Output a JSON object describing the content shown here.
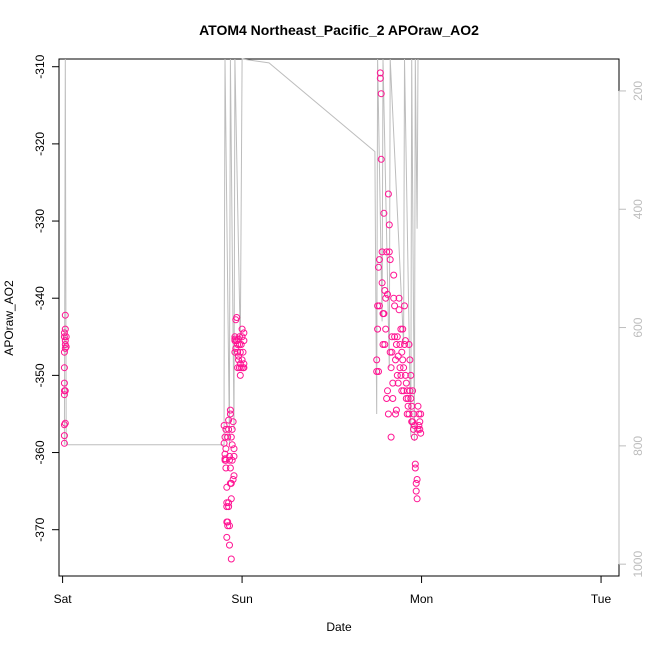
{
  "chart_data": {
    "type": "scatter",
    "title": "ATOM4 Northeast_Pacific_2 APOraw_AO2",
    "xlabel": "Date",
    "ylabel": "APOraw_AO2",
    "x_unit": "days since Saturday 00:00",
    "xlim": [
      -0.02,
      3.1
    ],
    "ylim": [
      -376,
      -309
    ],
    "x_ticks": [
      {
        "value": 0,
        "label": "Sat"
      },
      {
        "value": 1,
        "label": "Sun"
      },
      {
        "value": 2,
        "label": "Mon"
      },
      {
        "value": 3,
        "label": "Tue"
      }
    ],
    "y_ticks": [
      -370,
      -360,
      -350,
      -340,
      -330,
      -320,
      -310
    ],
    "right_axis": {
      "color": "#bdbdbd",
      "reversed": true,
      "lim": [
        146,
        1020
      ],
      "ticks": [
        200,
        400,
        600,
        800,
        1000
      ]
    },
    "grid": false,
    "series": [
      {
        "name": "APOraw_AO2",
        "color": "#ff1493",
        "marker": "open-circle",
        "x": [
          0.01,
          0.01,
          0.01,
          0.01,
          0.01,
          0.01,
          0.01,
          0.01,
          0.01,
          0.01,
          0.015,
          0.015,
          0.015,
          0.015,
          0.015,
          0.015,
          0.015,
          0.02,
          0.02,
          0.9,
          0.9,
          0.905,
          0.905,
          0.905,
          0.905,
          0.91,
          0.91,
          0.91,
          0.91,
          0.915,
          0.915,
          0.915,
          0.915,
          0.915,
          0.92,
          0.92,
          0.92,
          0.925,
          0.925,
          0.925,
          0.925,
          0.93,
          0.93,
          0.93,
          0.93,
          0.935,
          0.935,
          0.935,
          0.935,
          0.94,
          0.94,
          0.94,
          0.94,
          0.945,
          0.945,
          0.945,
          0.95,
          0.95,
          0.955,
          0.955,
          0.955,
          0.96,
          0.96,
          0.96,
          0.96,
          0.965,
          0.965,
          0.97,
          0.97,
          0.975,
          0.975,
          0.975,
          0.98,
          0.98,
          0.98,
          0.985,
          0.985,
          0.985,
          0.99,
          0.99,
          0.99,
          0.995,
          0.995,
          1.0,
          1.0,
          1.0,
          1.005,
          1.005,
          1.01,
          1.01,
          1.01,
          1.01,
          1.75,
          1.75,
          1.755,
          1.755,
          1.76,
          1.76,
          1.765,
          1.765,
          1.77,
          1.77,
          1.775,
          1.775,
          1.78,
          1.78,
          1.785,
          1.785,
          1.79,
          1.79,
          1.795,
          1.795,
          1.8,
          1.8,
          1.805,
          1.805,
          1.81,
          1.81,
          1.815,
          1.815,
          1.82,
          1.82,
          1.825,
          1.825,
          1.83,
          1.83,
          1.835,
          1.835,
          1.84,
          1.84,
          1.845,
          1.845,
          1.85,
          1.85,
          1.855,
          1.855,
          1.86,
          1.86,
          1.865,
          1.865,
          1.87,
          1.87,
          1.875,
          1.875,
          1.88,
          1.88,
          1.885,
          1.885,
          1.89,
          1.89,
          1.895,
          1.895,
          1.9,
          1.9,
          1.905,
          1.905,
          1.91,
          1.91,
          1.915,
          1.915,
          1.92,
          1.92,
          1.925,
          1.925,
          1.93,
          1.93,
          1.935,
          1.935,
          1.94,
          1.94,
          1.945,
          1.945,
          1.95,
          1.95,
          1.955,
          1.955,
          1.96,
          1.96,
          1.965,
          1.965,
          1.97,
          1.97,
          1.975,
          1.975,
          1.98,
          1.98,
          1.985,
          1.985,
          1.99,
          1.99,
          1.995,
          1.995
        ],
        "y": [
          -358.8,
          -357.8,
          -356.4,
          -351.0,
          -347.0,
          -345.0,
          -344.5,
          -352.5,
          -352.0,
          -349.0,
          -356.2,
          -346.5,
          -346.0,
          -344.0,
          -342.2,
          -345.5,
          -352.0,
          -346.3,
          -345.0,
          -356.5,
          -358.8,
          -360.2,
          -361.0,
          -360.8,
          -358.0,
          -362.0,
          -361.0,
          -359.5,
          -357.0,
          -366.5,
          -367.0,
          -369.0,
          -371.0,
          -364.5,
          -369.5,
          -369.0,
          -358.0,
          -366.5,
          -367.0,
          -357.0,
          -355.8,
          -361.0,
          -360.5,
          -369.5,
          -372.0,
          -355.0,
          -354.5,
          -362.0,
          -364.0,
          -364.0,
          -366.0,
          -373.8,
          -358.0,
          -357.0,
          -359.0,
          -361.0,
          -356.0,
          -363.5,
          -359.5,
          -360.5,
          -363.0,
          -347.0,
          -345.5,
          -345.3,
          -345.0,
          -346.5,
          -342.8,
          -342.5,
          -345.5,
          -346.0,
          -347.0,
          -349.0,
          -345.3,
          -347.5,
          -348.0,
          -345.0,
          -346.0,
          -349.0,
          -347.0,
          -348.5,
          -350.0,
          -346.0,
          -349.0,
          -345.0,
          -348.0,
          -344.0,
          -349.0,
          -347.0,
          -345.5,
          -344.5,
          -348.5,
          -349.0,
          -348.0,
          -349.5,
          -341.0,
          -344.0,
          -336.0,
          -349.5,
          -335.0,
          -341.0,
          -311.5,
          -310.8,
          -313.5,
          -322.0,
          -334.0,
          -338.0,
          -342.0,
          -346.0,
          -329.0,
          -342.0,
          -339.0,
          -346.0,
          -344.0,
          -340.0,
          -353.0,
          -334.0,
          -339.5,
          -352.0,
          -355.0,
          -326.5,
          -330.5,
          -334.0,
          -347.0,
          -335.0,
          -349.0,
          -358.0,
          -345.0,
          -347.0,
          -351.0,
          -353.0,
          -337.0,
          -340.0,
          -345.0,
          -341.0,
          -348.0,
          -355.0,
          -354.5,
          -346.0,
          -350.0,
          -345.0,
          -347.5,
          -351.0,
          -340.0,
          -341.5,
          -346.0,
          -349.0,
          -344.0,
          -350.0,
          -347.0,
          -352.0,
          -344.0,
          -348.0,
          -349.0,
          -352.0,
          -341.0,
          -346.0,
          -345.5,
          -350.0,
          -353.0,
          -351.0,
          -355.0,
          -352.0,
          -353.0,
          -354.0,
          -355.0,
          -346.0,
          -352.0,
          -348.0,
          -353.0,
          -350.0,
          -354.0,
          -356.0,
          -352.0,
          -356.0,
          -355.0,
          -357.0,
          -356.5,
          -358.0,
          -361.5,
          -362.0,
          -364.0,
          -365.0,
          -363.5,
          -366.0,
          -357.0,
          -354.0,
          -355.0,
          -356.5,
          -357.0,
          -356.0,
          -355.0,
          -357.5
        ]
      }
    ],
    "pressure_trace": {
      "color": "#bdbdbd",
      "path": [
        [
          0.01,
          -359.0
        ],
        [
          0.015,
          -309.0
        ],
        [
          0.02,
          -359.0
        ],
        [
          0.9,
          -359.0
        ],
        [
          0.9,
          -350.5
        ],
        [
          0.905,
          -309.0
        ],
        [
          0.93,
          -359.0
        ],
        [
          0.93,
          -350.5
        ],
        [
          0.935,
          -309.0
        ],
        [
          0.955,
          -357.0
        ],
        [
          0.96,
          -309.0
        ],
        [
          0.99,
          -346.0
        ],
        [
          1.0,
          -309.0
        ],
        [
          1.15,
          -309.5
        ],
        [
          1.74,
          -321.0
        ],
        [
          1.745,
          -340.0
        ],
        [
          1.75,
          -355.0
        ],
        [
          1.755,
          -309.0
        ],
        [
          1.78,
          -343.0
        ],
        [
          1.785,
          -309.0
        ],
        [
          1.82,
          -349.0
        ],
        [
          1.825,
          -309.0
        ],
        [
          1.9,
          -346.0
        ],
        [
          1.905,
          -309.0
        ],
        [
          1.94,
          -358.0
        ],
        [
          1.945,
          -309.0
        ],
        [
          1.96,
          -358.5
        ],
        [
          1.965,
          -309.0
        ],
        [
          1.975,
          -331.0
        ],
        [
          1.98,
          -309.0
        ]
      ]
    }
  }
}
